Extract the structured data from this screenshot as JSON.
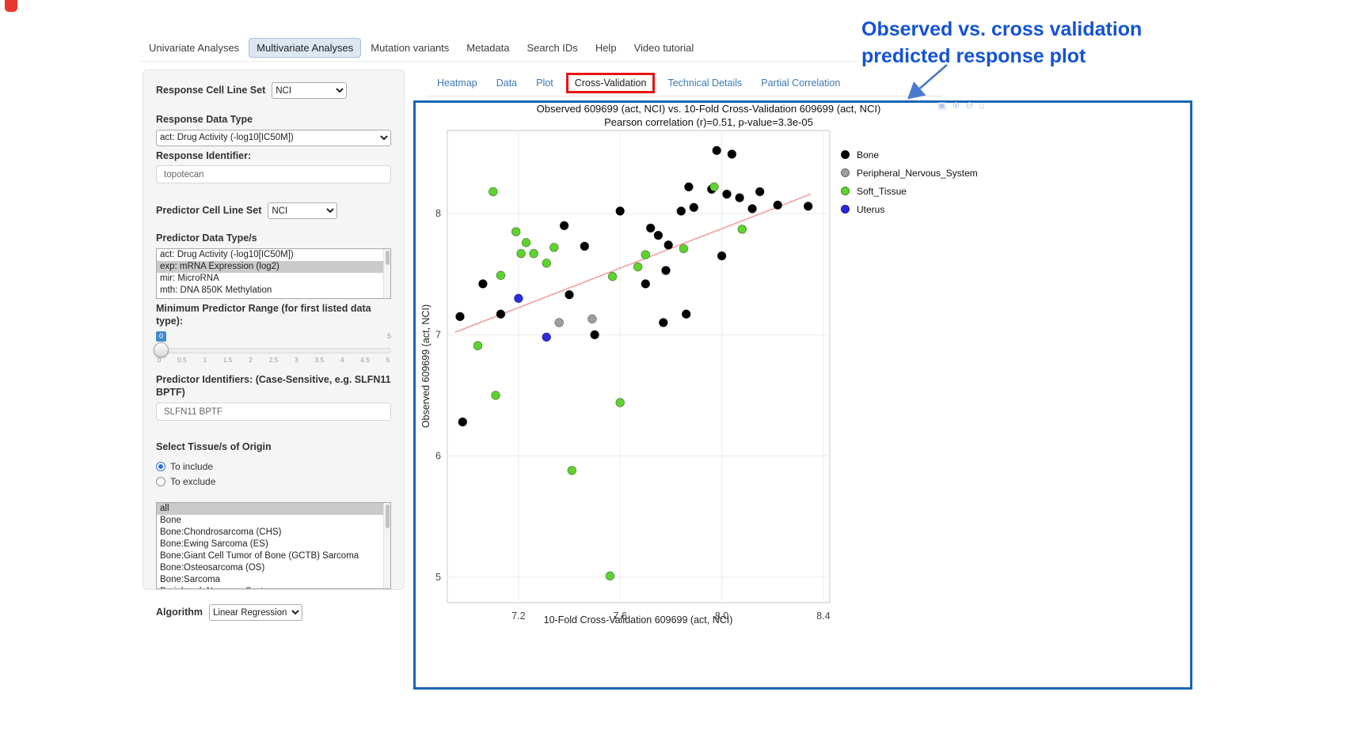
{
  "record_indicator": {
    "color": "#e8372c"
  },
  "nav": {
    "tabs": [
      {
        "label": "Univariate Analyses",
        "active": false
      },
      {
        "label": "Multivariate Analyses",
        "active": true
      },
      {
        "label": "Mutation variants",
        "active": false
      },
      {
        "label": "Metadata",
        "active": false
      },
      {
        "label": "Search IDs",
        "active": false
      },
      {
        "label": "Help",
        "active": false
      },
      {
        "label": "Video tutorial",
        "active": false
      }
    ]
  },
  "sidebar": {
    "response_cell_line_set": {
      "label": "Response Cell Line Set",
      "value": "NCI"
    },
    "response_data_type": {
      "label": "Response Data Type",
      "value": "act: Drug Activity (-log10[IC50M])"
    },
    "response_identifier": {
      "label": "Response Identifier:",
      "value": "topotecan"
    },
    "predictor_cell_line_set": {
      "label": "Predictor Cell Line Set",
      "value": "NCI"
    },
    "predictor_data_types": {
      "label": "Predictor Data Type/s",
      "options": [
        "act: Drug Activity (-log10[IC50M])",
        "exp: mRNA Expression (log2)",
        "mir: MicroRNA",
        "mth: DNA 850K Methylation"
      ],
      "selected": "exp: mRNA Expression (log2)"
    },
    "min_predictor_range": {
      "label": "Minimum Predictor Range (for first listed data type):",
      "value": "0",
      "max_label": "5",
      "ticks": [
        "0",
        "0.5",
        "1",
        "1.5",
        "2",
        "2.5",
        "3",
        "3.5",
        "4",
        "4.5",
        "5"
      ]
    },
    "predictor_identifiers": {
      "label": "Predictor Identifiers: (Case-Sensitive, e.g. SLFN11 BPTF)",
      "value": "SLFN11 BPTF"
    },
    "tissue_origin": {
      "label": "Select Tissue/s of Origin",
      "radios": [
        {
          "label": "To include",
          "checked": true
        },
        {
          "label": "To exclude",
          "checked": false
        }
      ],
      "options": [
        "all",
        "Bone",
        "Bone:Chondrosarcoma (CHS)",
        "Bone:Ewing Sarcoma (ES)",
        "Bone:Giant Cell Tumor of Bone (GCTB) Sarcoma",
        "Bone:Osteosarcoma (OS)",
        "Bone:Sarcoma",
        "Peripheral_Nervous_System"
      ],
      "selected": "all"
    },
    "algorithm": {
      "label": "Algorithm",
      "value": "Linear Regression"
    }
  },
  "content_tabs": [
    {
      "label": "Heatmap",
      "active": false,
      "red_box": false
    },
    {
      "label": "Data",
      "active": false,
      "red_box": false
    },
    {
      "label": "Plot",
      "active": false,
      "red_box": false
    },
    {
      "label": "Cross-Validation",
      "active": true,
      "red_box": true
    },
    {
      "label": "Technical Details",
      "active": false,
      "red_box": false
    },
    {
      "label": "Partial Correlation",
      "active": false,
      "red_box": false
    }
  ],
  "modebar": {
    "icons": [
      {
        "name": "camera-icon",
        "glyph": "▣"
      },
      {
        "name": "zoom-in-icon",
        "glyph": "⊕"
      },
      {
        "name": "zoom-out-icon",
        "glyph": "⊖"
      },
      {
        "name": "reset-axes-icon",
        "glyph": "⌂"
      }
    ]
  },
  "annotation": {
    "line1": "Observed vs. cross validation",
    "line2": "predicted response plot",
    "color": "#1453d4"
  },
  "chart_data": {
    "type": "scatter",
    "title": "Observed 609699 (act, NCI) vs. 10-Fold Cross-Validation 609699 (act, NCI)",
    "subtitle": "Pearson correlation (r)=0.51, p-value=3.3e-05",
    "xlabel": "10-Fold Cross-Validation 609699 (act, NCI)",
    "ylabel": "Observed 609699 (act, NCI)",
    "xlim": [
      6.92,
      8.425
    ],
    "ylim": [
      4.79,
      8.685
    ],
    "xticks": [
      7.2,
      7.6,
      8.0,
      8.4
    ],
    "yticks": [
      5,
      6,
      7,
      8
    ],
    "grid": true,
    "legend_position": "right",
    "regression_line": {
      "x1": 6.95,
      "y1": 7.02,
      "x2": 8.35,
      "y2": 8.16,
      "color": "#f59191"
    },
    "series": [
      {
        "name": "Bone",
        "color": "#000000",
        "points": [
          [
            7.98,
            8.52
          ],
          [
            8.04,
            8.49
          ],
          [
            7.87,
            8.22
          ],
          [
            7.96,
            8.2
          ],
          [
            8.02,
            8.16
          ],
          [
            8.07,
            8.13
          ],
          [
            8.15,
            8.18
          ],
          [
            8.22,
            8.07
          ],
          [
            8.12,
            8.04
          ],
          [
            8.34,
            8.06
          ],
          [
            7.84,
            8.02
          ],
          [
            7.89,
            8.05
          ],
          [
            7.6,
            8.02
          ],
          [
            7.38,
            7.9
          ],
          [
            7.72,
            7.88
          ],
          [
            7.75,
            7.82
          ],
          [
            7.79,
            7.74
          ],
          [
            8.0,
            7.65
          ],
          [
            7.46,
            7.73
          ],
          [
            7.78,
            7.53
          ],
          [
            7.7,
            7.42
          ],
          [
            7.06,
            7.42
          ],
          [
            7.4,
            7.33
          ],
          [
            7.13,
            7.17
          ],
          [
            6.97,
            7.15
          ],
          [
            7.86,
            7.17
          ],
          [
            7.77,
            7.1
          ],
          [
            7.5,
            7.0
          ],
          [
            6.98,
            6.28
          ]
        ]
      },
      {
        "name": "Peripheral_Nervous_System",
        "color": "#9e9e9e",
        "points": [
          [
            7.36,
            7.1
          ],
          [
            7.49,
            7.13
          ]
        ]
      },
      {
        "name": "Soft_Tissue",
        "color": "#5fd32d",
        "points": [
          [
            7.1,
            8.18
          ],
          [
            7.97,
            8.22
          ],
          [
            8.08,
            7.87
          ],
          [
            7.19,
            7.85
          ],
          [
            7.23,
            7.76
          ],
          [
            7.21,
            7.67
          ],
          [
            7.26,
            7.67
          ],
          [
            7.34,
            7.72
          ],
          [
            7.31,
            7.59
          ],
          [
            7.13,
            7.49
          ],
          [
            7.57,
            7.48
          ],
          [
            7.67,
            7.56
          ],
          [
            7.7,
            7.66
          ],
          [
            7.85,
            7.71
          ],
          [
            7.04,
            6.91
          ],
          [
            7.11,
            6.5
          ],
          [
            7.41,
            5.88
          ],
          [
            7.6,
            6.44
          ],
          [
            7.56,
            5.01
          ]
        ]
      },
      {
        "name": "Uterus",
        "color": "#2b2bdf",
        "points": [
          [
            7.2,
            7.3
          ],
          [
            7.31,
            6.98
          ]
        ]
      }
    ]
  }
}
